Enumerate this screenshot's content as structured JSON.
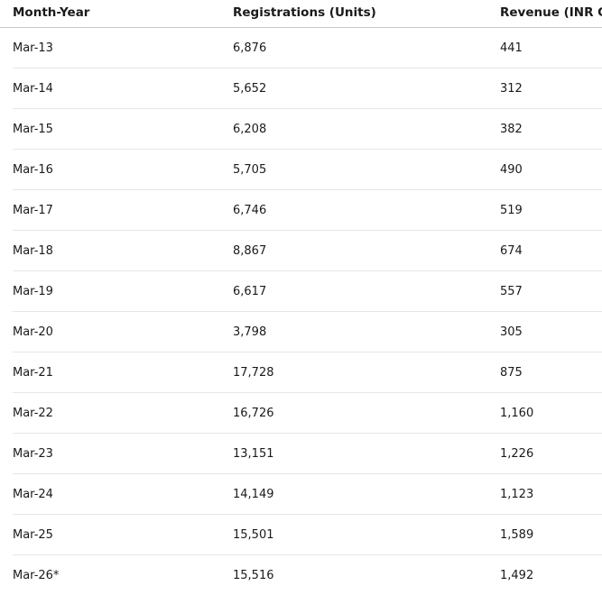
{
  "table": {
    "headers": [
      "Month-Year",
      "Registrations (Units)",
      "Revenue (INR Cr)"
    ],
    "rows": [
      [
        "Mar-13",
        "6,876",
        "441"
      ],
      [
        "Mar-14",
        "5,652",
        "312"
      ],
      [
        "Mar-15",
        "6,208",
        "382"
      ],
      [
        "Mar-16",
        "5,705",
        "490"
      ],
      [
        "Mar-17",
        "6,746",
        "519"
      ],
      [
        "Mar-18",
        "8,867",
        "674"
      ],
      [
        "Mar-19",
        "6,617",
        "557"
      ],
      [
        "Mar-20",
        "3,798",
        "305"
      ],
      [
        "Mar-21",
        "17,728",
        "875"
      ],
      [
        "Mar-22",
        "16,726",
        "1,160"
      ],
      [
        "Mar-23",
        "13,151",
        "1,226"
      ],
      [
        "Mar-24",
        "14,149",
        "1,123"
      ],
      [
        "Mar-25",
        "15,501",
        "1,589"
      ],
      [
        "Mar-26*",
        "15,516",
        "1,492"
      ]
    ]
  }
}
